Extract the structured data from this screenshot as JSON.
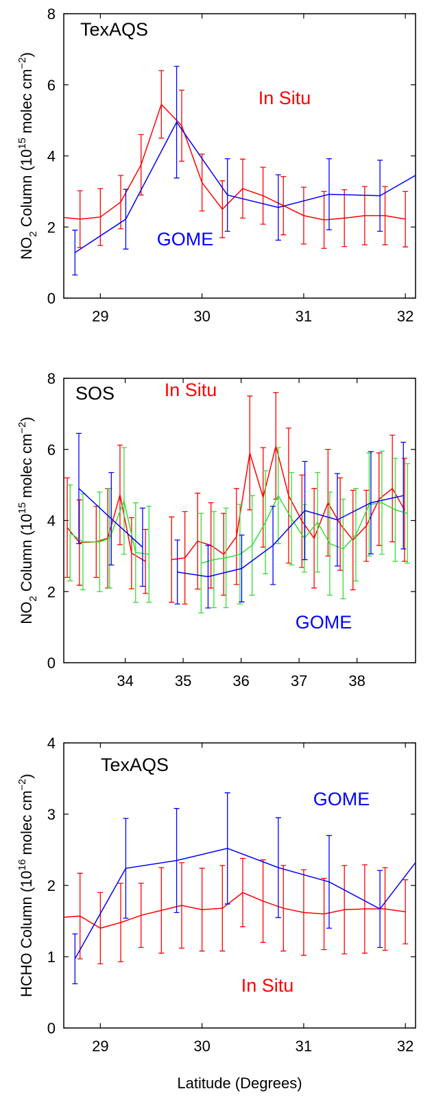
{
  "chart_data": [
    {
      "type": "line",
      "annotation": "TexAQS",
      "ylabel_parts": [
        "NO",
        "2",
        " Column (10",
        "15",
        " molec cm",
        "−2",
        ")"
      ],
      "xlim": [
        28.64,
        32.1
      ],
      "ylim": [
        0,
        8
      ],
      "xticks": [
        29,
        30,
        31,
        32
      ],
      "yticks": [
        0,
        2,
        4,
        6,
        8
      ],
      "series": [
        {
          "name": "In Situ",
          "color": "#ff0000",
          "x": [
            28.6,
            28.8,
            29.0,
            29.2,
            29.4,
            29.6,
            29.8,
            30.0,
            30.2,
            30.4,
            30.6,
            30.8,
            31.0,
            31.2,
            31.4,
            31.6,
            31.8,
            32.0
          ],
          "values": [
            2.28,
            2.22,
            2.28,
            2.7,
            3.75,
            5.45,
            4.85,
            3.25,
            2.5,
            3.08,
            2.88,
            2.6,
            2.32,
            2.2,
            2.25,
            2.32,
            2.32,
            2.22
          ],
          "errors": [
            null,
            0.8,
            0.8,
            0.75,
            0.85,
            0.95,
            1.0,
            0.8,
            0.8,
            0.83,
            0.8,
            0.82,
            0.8,
            0.8,
            0.8,
            0.82,
            0.82,
            0.78
          ]
        },
        {
          "name": "GOME",
          "color": "#0000ff",
          "x": [
            28.75,
            29.25,
            29.75,
            30.25,
            30.75,
            31.25,
            31.75,
            32.25
          ],
          "values": [
            1.28,
            2.22,
            4.95,
            2.9,
            2.55,
            2.92,
            2.88,
            3.7
          ],
          "errors": [
            0.63,
            0.84,
            1.57,
            1.02,
            0.92,
            1.0,
            1.0,
            null
          ]
        }
      ]
    },
    {
      "type": "line",
      "annotation": "SOS",
      "ylabel_parts": [
        "NO",
        "2",
        " Column (10",
        "15",
        " molec cm",
        "−2",
        ")"
      ],
      "xlim": [
        32.94,
        39.01
      ],
      "ylim": [
        0,
        8
      ],
      "xticks": [
        34,
        35,
        36,
        37,
        38
      ],
      "yticks": [
        0,
        2,
        4,
        6,
        8
      ],
      "series": [
        {
          "name": "In Situ",
          "color": "#ff0000",
          "x": [
            33.0,
            33.21,
            33.5,
            33.7,
            33.91,
            34.11,
            34.35,
            34.6,
            34.8,
            35.03,
            35.25,
            35.48,
            35.7,
            35.92,
            36.15,
            36.38,
            36.6,
            36.82,
            37.05,
            37.26,
            37.5,
            37.71,
            37.93,
            38.16,
            38.38,
            38.61,
            38.82
          ],
          "values": [
            3.8,
            3.38,
            3.4,
            3.5,
            4.72,
            3.08,
            2.85,
            null,
            2.9,
            2.95,
            3.42,
            3.3,
            3.05,
            3.55,
            5.9,
            4.65,
            6.1,
            4.7,
            3.98,
            3.5,
            4.5,
            3.9,
            3.45,
            3.85,
            4.6,
            4.9,
            4.3
          ],
          "errors": [
            1.4,
            1.2,
            1.0,
            1.4,
            1.4,
            1.0,
            0.9,
            null,
            1.2,
            1.3,
            1.35,
            1.2,
            1.15,
            1.35,
            1.6,
            1.4,
            1.5,
            1.9,
            1.3,
            1.4,
            1.5,
            1.3,
            1.4,
            1.0,
            1.3,
            1.5,
            1.45
          ]
        },
        {
          "color": "#33dd33",
          "x": [
            33.05,
            33.27,
            33.56,
            33.73,
            33.98,
            34.18,
            34.41,
            34.8,
            35.31,
            35.53,
            35.74,
            35.98,
            36.19,
            36.42,
            36.64,
            36.87,
            37.09,
            37.32,
            37.53,
            37.76,
            37.98,
            38.21,
            38.43,
            38.66,
            38.87
          ],
          "values": [
            3.65,
            3.4,
            3.4,
            3.5,
            4.55,
            3.1,
            3.05,
            null,
            2.8,
            2.9,
            2.95,
            3.05,
            3.3,
            3.95,
            4.7,
            4.05,
            3.5,
            3.95,
            3.35,
            3.2,
            3.6,
            4.45,
            4.5,
            4.3,
            4.2
          ],
          "errors": [
            1.35,
            1.35,
            1.4,
            1.4,
            1.5,
            1.4,
            1.35,
            null,
            1.4,
            1.35,
            1.4,
            1.4,
            1.4,
            1.45,
            1.35,
            1.3,
            0.95,
            1.4,
            1.45,
            1.4,
            1.3,
            1.45,
            1.45,
            1.45,
            1.4
          ]
        },
        {
          "name": "GOME",
          "color": "#0000ff",
          "x": [
            33.2,
            33.76,
            34.3,
            34.6,
            34.9,
            35.43,
            36.01,
            36.55,
            37.1,
            37.66,
            38.24,
            38.8
          ],
          "values": [
            4.9,
            4.05,
            3.25,
            null,
            2.55,
            2.42,
            2.65,
            3.3,
            4.28,
            4.02,
            4.5,
            4.7
          ],
          "errors": [
            1.55,
            1.3,
            1.1,
            null,
            0.9,
            0.88,
            0.94,
            1.1,
            1.38,
            1.3,
            1.44,
            1.5
          ]
        }
      ]
    },
    {
      "type": "line",
      "annotation": "TexAQS",
      "ylabel_parts": [
        "HCHO Column (10",
        "16",
        " molec cm",
        "−2",
        ")"
      ],
      "xlabel": "Latitude (Degrees)",
      "xlim": [
        28.64,
        32.1
      ],
      "ylim": [
        0,
        4
      ],
      "xticks": [
        29,
        30,
        31,
        32
      ],
      "yticks": [
        0,
        1,
        2,
        3,
        4
      ],
      "series": [
        {
          "name": "In Situ",
          "color": "#ff0000",
          "x": [
            28.6,
            28.8,
            29.0,
            29.2,
            29.4,
            29.6,
            29.8,
            30.0,
            30.2,
            30.4,
            30.6,
            30.8,
            31.0,
            31.2,
            31.4,
            31.6,
            31.8,
            32.0
          ],
          "values": [
            1.55,
            1.57,
            1.4,
            1.48,
            1.58,
            1.65,
            1.72,
            1.66,
            1.68,
            1.9,
            1.78,
            1.68,
            1.62,
            1.6,
            1.66,
            1.67,
            1.67,
            1.63
          ],
          "errors": [
            null,
            0.6,
            0.5,
            0.55,
            0.45,
            0.6,
            0.6,
            0.58,
            0.6,
            0.48,
            0.58,
            0.6,
            0.6,
            0.5,
            0.62,
            0.62,
            0.58,
            0.45
          ]
        },
        {
          "name": "GOME",
          "color": "#0000ff",
          "x": [
            28.75,
            29.25,
            29.75,
            30.25,
            30.75,
            31.25,
            31.75,
            32.25
          ],
          "values": [
            0.97,
            2.24,
            2.35,
            2.52,
            2.25,
            2.05,
            1.67,
            2.6
          ],
          "errors": [
            0.35,
            0.7,
            0.73,
            0.78,
            0.7,
            0.65,
            0.54,
            null
          ]
        }
      ]
    }
  ]
}
